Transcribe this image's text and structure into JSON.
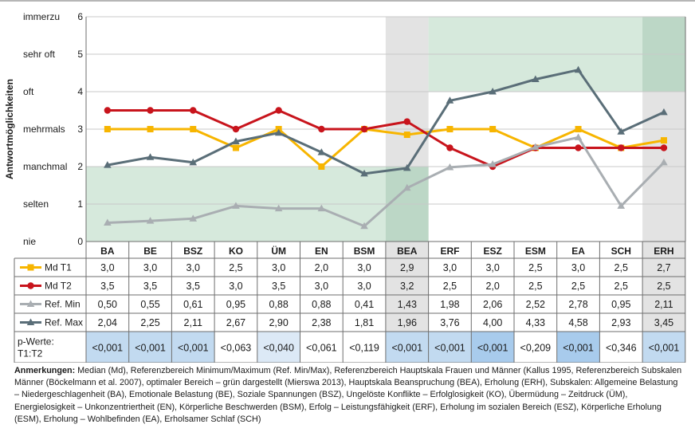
{
  "chart_data": {
    "type": "line",
    "ylabel": "Antwortmöglichkeiten",
    "ylim": [
      0,
      6
    ],
    "y_ticks": [
      {
        "value": 0,
        "label": "nie",
        "num": "0"
      },
      {
        "value": 1,
        "label": "selten",
        "num": "1"
      },
      {
        "value": 2,
        "label": "manchmal",
        "num": "2"
      },
      {
        "value": 3,
        "label": "mehrmals",
        "num": "3"
      },
      {
        "value": 4,
        "label": "oft",
        "num": "4"
      },
      {
        "value": 5,
        "label": "sehr oft",
        "num": "5"
      },
      {
        "value": 6,
        "label": "immerzu",
        "num": "6"
      }
    ],
    "categories": [
      "BA",
      "BE",
      "BSZ",
      "KO",
      "ÜM",
      "EN",
      "BSM",
      "BEA",
      "ERF",
      "ESZ",
      "ESM",
      "EA",
      "SCH",
      "ERH"
    ],
    "highlight_categories": [
      "BEA",
      "ERH"
    ],
    "optimal_ranges": [
      {
        "from_index": 0,
        "to_index": 7,
        "y_range": [
          0,
          2
        ]
      },
      {
        "from_index": 8,
        "to_index": 13,
        "y_range": [
          4,
          6
        ]
      }
    ],
    "series": [
      {
        "name": "Md T1",
        "color": "#f7b500",
        "marker": "square",
        "values": [
          3.0,
          3.0,
          3.0,
          2.5,
          3.0,
          2.0,
          3.0,
          2.85,
          3.0,
          3.0,
          2.5,
          3.0,
          2.5,
          2.7
        ],
        "labels": [
          "3,0",
          "3,0",
          "3,0",
          "2,5",
          "3,0",
          "2,0",
          "3,0",
          "2,9",
          "3,0",
          "3,0",
          "2,5",
          "3,0",
          "2,5",
          "2,7"
        ]
      },
      {
        "name": "Md T2",
        "color": "#c8141c",
        "marker": "circle",
        "values": [
          3.5,
          3.5,
          3.5,
          3.0,
          3.5,
          3.0,
          3.0,
          3.2,
          2.5,
          2.0,
          2.5,
          2.5,
          2.5,
          2.5
        ],
        "labels": [
          "3,5",
          "3,5",
          "3,5",
          "3,0",
          "3,5",
          "3,0",
          "3,0",
          "3,2",
          "2,5",
          "2,0",
          "2,5",
          "2,5",
          "2,5",
          "2,5"
        ]
      },
      {
        "name": "Ref. Min",
        "color": "#a9aeb2",
        "marker": "triangle",
        "values": [
          0.5,
          0.55,
          0.61,
          0.95,
          0.88,
          0.88,
          0.41,
          1.43,
          1.98,
          2.06,
          2.52,
          2.78,
          0.95,
          2.11
        ],
        "labels": [
          "0,50",
          "0,55",
          "0,61",
          "0,95",
          "0,88",
          "0,88",
          "0,41",
          "1,43",
          "1,98",
          "2,06",
          "2,52",
          "2,78",
          "0,95",
          "2,11"
        ]
      },
      {
        "name": "Ref. Max",
        "color": "#5a6e78",
        "marker": "triangle",
        "values": [
          2.04,
          2.25,
          2.11,
          2.67,
          2.9,
          2.38,
          1.81,
          1.96,
          3.76,
          4.0,
          4.33,
          4.58,
          2.93,
          3.45
        ],
        "labels": [
          "2,04",
          "2,25",
          "2,11",
          "2,67",
          "2,90",
          "2,38",
          "1,81",
          "1,96",
          "3,76",
          "4,00",
          "4,33",
          "4,58",
          "2,93",
          "3,45"
        ]
      }
    ],
    "pvalues": {
      "label_line1": "p-Werte:",
      "label_line2": "T1:T2",
      "values": [
        "<0,001",
        "<0,001",
        "<0,001",
        "<0,063",
        "<0,040",
        "<0,061",
        "<0,119",
        "<0,001",
        "<0,001",
        "<0,001",
        "<0,209",
        "<0,001",
        "<0,346",
        "<0,001"
      ],
      "shade_colors": [
        "#c2daf0",
        "#c2daf0",
        "#c2daf0",
        "#ffffff",
        "#dce9f6",
        "#ffffff",
        "#ffffff",
        "#c2daf0",
        "#c2daf0",
        "#a8cbec",
        "#ffffff",
        "#a8cbec",
        "#ffffff",
        "#c2daf0"
      ]
    }
  },
  "notes": {
    "label": "Anmerkungen:",
    "text": " Median (Md), Referenzbereich Minimum/Maximum (Ref. Min/Max), Referenzbereich Hauptskala Frauen und Männer (Kallus 1995, Referenzbereich Subskalen Männer (Böckelmann et al. 2007), optimaler Bereich – grün dargestellt (Mierswa 2013), Hauptskala Beanspruchung (BEA), Erholung (ERH), Subskalen: Allgemeine Belastung – Niedergeschlagenheit (BA), Emotionale Belastung (BE), Soziale Spannungen (BSZ), Ungelöste Konflikte – Erfolglosigkeit (KO), Übermüdung – Zeitdruck (ÜM), Energielosigkeit – Unkonzentriertheit (EN), Körperliche Beschwerden (BSM), Erfolg – Leistungsfähigkeit (ERF), Erholung im sozialen Bereich (ESZ), Körperliche Erholung (ESM), Erholung – Wohlbefinden (EA), Erholsamer Schlaf (SCH)"
  },
  "colors": {
    "green_zone": "#cfe5d6",
    "green_zone_on_gray": "#bcd7c6",
    "gray_column": "#e3e3e3",
    "grid": "#c8c8c8",
    "frame": "#6e6e6e"
  }
}
